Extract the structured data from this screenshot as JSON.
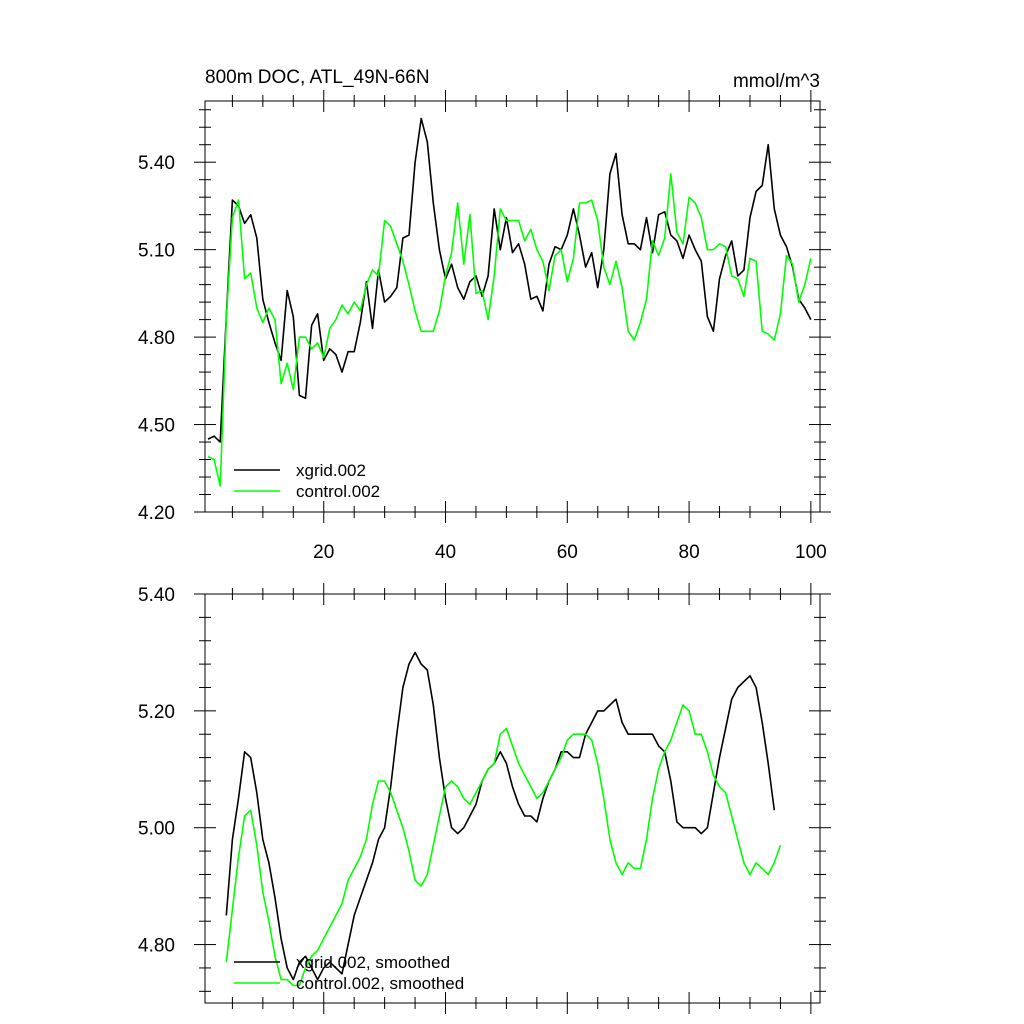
{
  "chart_data": [
    {
      "type": "line",
      "title": "800m DOC, ATL_49N-66N",
      "units": "mmol/m^3",
      "x_ticks": [
        20,
        40,
        60,
        80,
        100
      ],
      "y_ticks": [
        4.2,
        4.5,
        4.8,
        5.1,
        5.4
      ],
      "y_tick_labels": [
        "4.20",
        "4.50",
        "4.80",
        "5.10",
        "5.40"
      ],
      "xlim": [
        0.5,
        101.5
      ],
      "ylim": [
        4.2,
        5.61
      ],
      "legend_position": "bottom-left",
      "series": [
        {
          "name": "xgrid.002",
          "color": "#000000",
          "x_start": 1,
          "values": [
            4.45,
            4.46,
            4.44,
            4.87,
            5.27,
            5.25,
            5.19,
            5.22,
            5.14,
            4.93,
            4.85,
            4.78,
            4.72,
            4.96,
            4.87,
            4.6,
            4.59,
            4.84,
            4.88,
            4.72,
            4.76,
            4.74,
            4.68,
            4.75,
            4.75,
            4.85,
            4.99,
            4.83,
            5.03,
            4.92,
            4.94,
            4.97,
            5.14,
            5.15,
            5.4,
            5.55,
            5.47,
            5.26,
            5.1,
            5.0,
            5.05,
            4.97,
            4.93,
            4.99,
            5.01,
            4.94,
            5.01,
            5.24,
            5.1,
            5.21,
            5.09,
            5.12,
            5.05,
            4.93,
            4.94,
            4.89,
            5.05,
            5.11,
            5.1,
            5.15,
            5.24,
            5.15,
            5.04,
            5.09,
            4.97,
            5.1,
            5.36,
            5.43,
            5.22,
            5.12,
            5.12,
            5.1,
            5.21,
            5.09,
            5.22,
            5.23,
            5.15,
            5.13,
            5.07,
            5.15,
            5.1,
            5.06,
            4.87,
            4.82,
            5.0,
            5.08,
            5.13,
            5.01,
            5.03,
            5.21,
            5.3,
            5.32,
            5.46,
            5.24,
            5.15,
            5.11,
            5.04,
            4.93,
            4.9,
            4.86
          ]
        },
        {
          "name": "control.002",
          "color": "#00ff00",
          "x_start": 1,
          "values": [
            4.39,
            4.38,
            4.29,
            4.86,
            5.21,
            5.27,
            5.0,
            5.02,
            4.9,
            4.85,
            4.9,
            4.86,
            4.64,
            4.71,
            4.62,
            4.8,
            4.8,
            4.76,
            4.78,
            4.73,
            4.83,
            4.86,
            4.91,
            4.88,
            4.92,
            4.89,
            4.98,
            5.03,
            5.01,
            5.2,
            5.18,
            5.12,
            5.06,
            4.98,
            4.89,
            4.82,
            4.82,
            4.82,
            4.89,
            5.01,
            5.09,
            5.26,
            5.05,
            5.22,
            4.95,
            4.96,
            4.86,
            5.01,
            5.24,
            5.2,
            5.2,
            5.2,
            5.13,
            5.17,
            5.1,
            5.06,
            4.96,
            5.08,
            5.1,
            4.99,
            5.07,
            5.26,
            5.26,
            5.27,
            5.2,
            5.04,
            4.98,
            5.06,
            4.97,
            4.82,
            4.79,
            4.85,
            4.93,
            5.13,
            5.08,
            5.14,
            5.36,
            5.16,
            5.12,
            5.28,
            5.26,
            5.21,
            5.1,
            5.1,
            5.12,
            5.11,
            5.01,
            5.0,
            4.94,
            5.07,
            5.06,
            4.82,
            4.81,
            4.79,
            4.88,
            5.08,
            5.05,
            4.92,
            4.98,
            5.07
          ]
        }
      ]
    },
    {
      "type": "line",
      "title": "",
      "y_ticks": [
        4.8,
        5.0,
        5.2,
        5.4
      ],
      "y_tick_labels": [
        "4.80",
        "5.00",
        "5.20",
        "5.40"
      ],
      "xlim": [
        0.5,
        101.5
      ],
      "ylim": [
        4.7,
        5.4
      ],
      "legend_position": "bottom-left",
      "series": [
        {
          "name": "xgrid.002, smoothed",
          "color": "#000000",
          "x_start": 4,
          "values": [
            4.85,
            4.98,
            5.05,
            5.13,
            5.12,
            5.06,
            4.98,
            4.94,
            4.88,
            4.81,
            4.76,
            4.74,
            4.77,
            4.78,
            4.76,
            4.74,
            4.76,
            4.77,
            4.76,
            4.75,
            4.8,
            4.85,
            4.88,
            4.91,
            4.94,
            4.98,
            5.0,
            5.07,
            5.16,
            5.24,
            5.28,
            5.3,
            5.28,
            5.27,
            5.21,
            5.12,
            5.05,
            5.0,
            4.99,
            5.0,
            5.02,
            5.04,
            5.08,
            5.1,
            5.11,
            5.13,
            5.11,
            5.07,
            5.04,
            5.02,
            5.02,
            5.01,
            5.05,
            5.08,
            5.1,
            5.13,
            5.13,
            5.12,
            5.12,
            5.16,
            5.18,
            5.2,
            5.2,
            5.21,
            5.22,
            5.18,
            5.16,
            5.16,
            5.16,
            5.16,
            5.16,
            5.14,
            5.13,
            5.08,
            5.01,
            5.0,
            5.0,
            5.0,
            4.99,
            5.0,
            5.06,
            5.12,
            5.17,
            5.22,
            5.24,
            5.25,
            5.26,
            5.24,
            5.18,
            5.11,
            5.03
          ]
        },
        {
          "name": "control.002, smoothed",
          "color": "#00ff00",
          "x_start": 4,
          "values": [
            4.77,
            4.86,
            4.95,
            5.02,
            5.03,
            4.97,
            4.89,
            4.84,
            4.78,
            4.74,
            4.74,
            4.73,
            4.73,
            4.76,
            4.78,
            4.79,
            4.81,
            4.83,
            4.85,
            4.87,
            4.91,
            4.93,
            4.95,
            4.98,
            5.04,
            5.08,
            5.08,
            5.06,
            5.03,
            5.0,
            4.96,
            4.91,
            4.9,
            4.92,
            4.97,
            5.02,
            5.07,
            5.08,
            5.07,
            5.05,
            5.04,
            5.06,
            5.08,
            5.1,
            5.11,
            5.16,
            5.17,
            5.14,
            5.11,
            5.09,
            5.07,
            5.05,
            5.06,
            5.08,
            5.1,
            5.12,
            5.15,
            5.16,
            5.16,
            5.16,
            5.15,
            5.11,
            5.05,
            4.98,
            4.94,
            4.92,
            4.94,
            4.93,
            4.93,
            4.98,
            5.05,
            5.1,
            5.13,
            5.15,
            5.18,
            5.21,
            5.2,
            5.16,
            5.16,
            5.13,
            5.09,
            5.07,
            5.06,
            5.02,
            4.98,
            4.94,
            4.92,
            4.94,
            4.93,
            4.92,
            4.94,
            4.97
          ]
        }
      ]
    }
  ]
}
